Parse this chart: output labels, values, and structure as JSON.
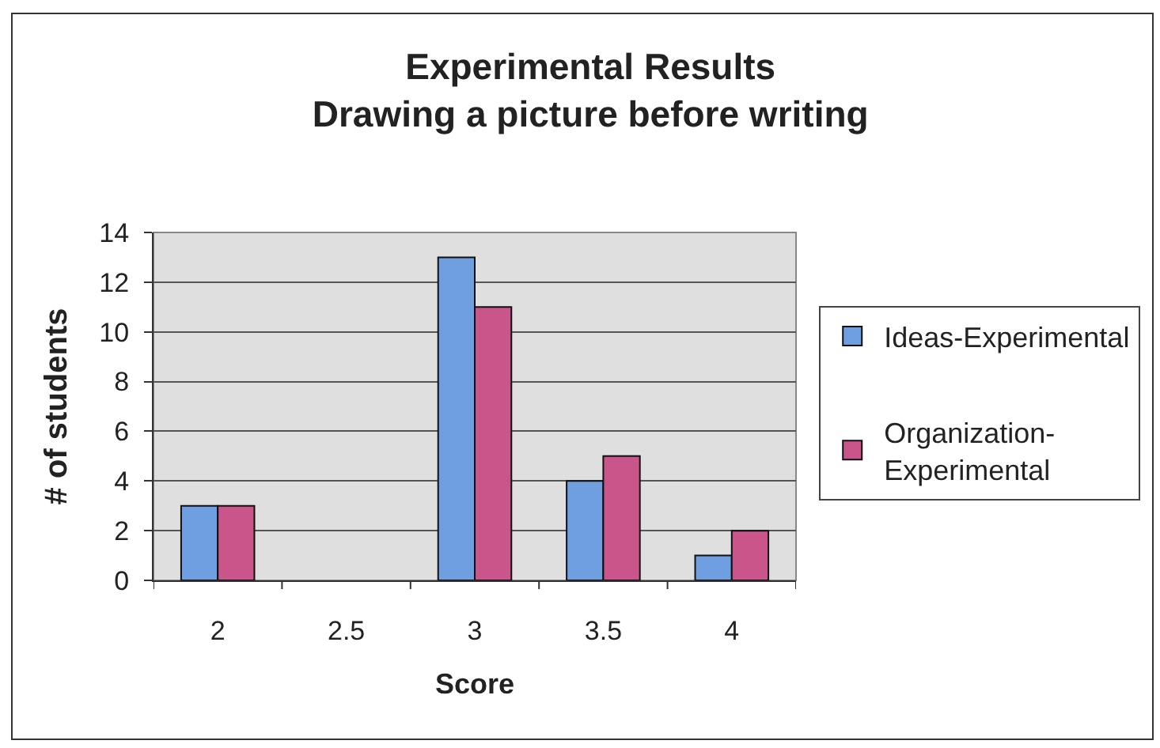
{
  "chart_data": {
    "type": "bar",
    "title": "Experimental Results",
    "subtitle": "Drawing a picture before writing",
    "xlabel": "Score",
    "ylabel": "# of students",
    "categories": [
      "2",
      "2.5",
      "3",
      "3.5",
      "4"
    ],
    "series": [
      {
        "name": "Ideas-Experimental",
        "color": "#6f9fe0",
        "values": [
          3,
          null,
          13,
          4,
          1
        ]
      },
      {
        "name": "Organization-Experimental",
        "color": "#c9558a",
        "values": [
          3,
          null,
          11,
          5,
          2
        ]
      }
    ],
    "ylim": [
      0,
      14
    ],
    "yticks": [
      0,
      2,
      4,
      6,
      8,
      10,
      12,
      14
    ],
    "grid": "y",
    "legend": "right"
  }
}
